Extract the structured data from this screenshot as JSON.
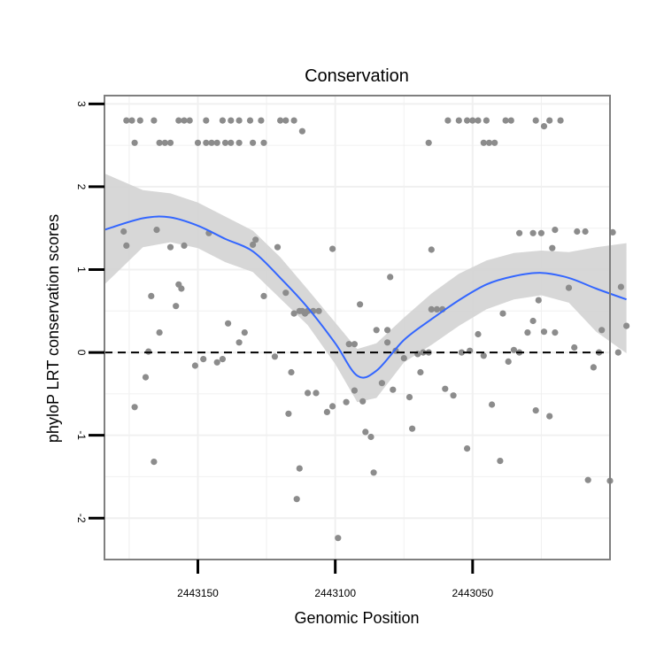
{
  "chart_data": {
    "type": "scatter",
    "title": "Conservation",
    "xlabel": "Genomic Position",
    "ylabel": "phyloP LRT conservation scores",
    "xlim": [
      2443184,
      2443000
    ],
    "ylim": [
      -2.5,
      3.1
    ],
    "x_reversed": true,
    "x_ticks": [
      2443150,
      2443100,
      2443050
    ],
    "x_tick_labels": [
      "2443150",
      "2443100",
      "2443050"
    ],
    "y_ticks": [
      -2,
      -1,
      0,
      1,
      2,
      3
    ],
    "y_tick_labels": [
      "-2",
      "-1",
      "0",
      "1",
      "2",
      "3"
    ],
    "reference_line": {
      "y": 0,
      "style": "dashed"
    },
    "colors": {
      "points": "#8c8c8c",
      "smooth": "#3366ff",
      "ribbon": "#d3d3d3",
      "grid": "#f0f0f0",
      "panel_border": "#7f7f7f"
    },
    "series": [
      {
        "name": "phyloP scores",
        "kind": "points",
        "points": [
          [
            2443176,
            2.8
          ],
          [
            2443174,
            2.8
          ],
          [
            2443171,
            2.8
          ],
          [
            2443166,
            2.8
          ],
          [
            2443157,
            2.8
          ],
          [
            2443155,
            2.8
          ],
          [
            2443153,
            2.8
          ],
          [
            2443147,
            2.8
          ],
          [
            2443141,
            2.8
          ],
          [
            2443138,
            2.8
          ],
          [
            2443135,
            2.8
          ],
          [
            2443131,
            2.8
          ],
          [
            2443127,
            2.8
          ],
          [
            2443120,
            2.8
          ],
          [
            2443118,
            2.8
          ],
          [
            2443115,
            2.8
          ],
          [
            2443059,
            2.8
          ],
          [
            2443055,
            2.8
          ],
          [
            2443052,
            2.8
          ],
          [
            2443050,
            2.8
          ],
          [
            2443048,
            2.8
          ],
          [
            2443045,
            2.8
          ],
          [
            2443038,
            2.8
          ],
          [
            2443036,
            2.8
          ],
          [
            2443027,
            2.8
          ],
          [
            2443022,
            2.8
          ],
          [
            2443018,
            2.8
          ],
          [
            2443173,
            2.53
          ],
          [
            2443164,
            2.53
          ],
          [
            2443162,
            2.53
          ],
          [
            2443160,
            2.53
          ],
          [
            2443150,
            2.53
          ],
          [
            2443147,
            2.53
          ],
          [
            2443145,
            2.53
          ],
          [
            2443143,
            2.53
          ],
          [
            2443140,
            2.53
          ],
          [
            2443138,
            2.53
          ],
          [
            2443135,
            2.53
          ],
          [
            2443130,
            2.53
          ],
          [
            2443126,
            2.53
          ],
          [
            2443066,
            2.53
          ],
          [
            2443046,
            2.53
          ],
          [
            2443044,
            2.53
          ],
          [
            2443042,
            2.53
          ],
          [
            2443112,
            2.67
          ],
          [
            2443024,
            2.73
          ],
          [
            2443177,
            1.46
          ],
          [
            2443176,
            1.29
          ],
          [
            2443165,
            1.48
          ],
          [
            2443160,
            1.27
          ],
          [
            2443155,
            1.29
          ],
          [
            2443146,
            1.44
          ],
          [
            2443130,
            1.3
          ],
          [
            2443129,
            1.36
          ],
          [
            2443121,
            1.27
          ],
          [
            2443101,
            1.25
          ],
          [
            2443065,
            1.24
          ],
          [
            2443033,
            1.44
          ],
          [
            2443028,
            1.44
          ],
          [
            2443025,
            1.44
          ],
          [
            2443021,
            1.26
          ],
          [
            2443020,
            1.48
          ],
          [
            2443012,
            1.46
          ],
          [
            2443009,
            1.46
          ],
          [
            2443157,
            0.82
          ],
          [
            2443156,
            0.77
          ],
          [
            2443158,
            0.56
          ],
          [
            2443167,
            0.68
          ],
          [
            2443164,
            0.24
          ],
          [
            2443168,
            0.01
          ],
          [
            2443169,
            -0.3
          ],
          [
            2443173,
            -0.66
          ],
          [
            2443166,
            -1.32
          ],
          [
            2443151,
            -0.16
          ],
          [
            2443148,
            -0.08
          ],
          [
            2443143,
            -0.12
          ],
          [
            2443141,
            -0.08
          ],
          [
            2443139,
            0.35
          ],
          [
            2443135,
            0.12
          ],
          [
            2443133,
            0.24
          ],
          [
            2443126,
            0.68
          ],
          [
            2443122,
            -0.05
          ],
          [
            2443118,
            0.72
          ],
          [
            2443115,
            0.47
          ],
          [
            2443113,
            0.5
          ],
          [
            2443112,
            0.5
          ],
          [
            2443111,
            0.47
          ],
          [
            2443110,
            0.5
          ],
          [
            2443108,
            0.5
          ],
          [
            2443106,
            0.5
          ],
          [
            2443117,
            -0.74
          ],
          [
            2443116,
            -0.24
          ],
          [
            2443113,
            -1.4
          ],
          [
            2443114,
            -1.77
          ],
          [
            2443110,
            -0.49
          ],
          [
            2443107,
            -0.49
          ],
          [
            2443103,
            -0.72
          ],
          [
            2443101,
            -0.65
          ],
          [
            2443099,
            -2.24
          ],
          [
            2443096,
            -0.6
          ],
          [
            2443095,
            0.1
          ],
          [
            2443093,
            0.1
          ],
          [
            2443093,
            -0.46
          ],
          [
            2443091,
            0.58
          ],
          [
            2443090,
            -0.59
          ],
          [
            2443089,
            -0.96
          ],
          [
            2443087,
            -1.02
          ],
          [
            2443086,
            -1.45
          ],
          [
            2443085,
            0.27
          ],
          [
            2443083,
            -0.37
          ],
          [
            2443081,
            0.12
          ],
          [
            2443081,
            0.27
          ],
          [
            2443080,
            0.91
          ],
          [
            2443079,
            -0.45
          ],
          [
            2443078,
            0.02
          ],
          [
            2443075,
            -0.07
          ],
          [
            2443073,
            -0.54
          ],
          [
            2443072,
            -0.92
          ],
          [
            2443070,
            -0.02
          ],
          [
            2443069,
            -0.24
          ],
          [
            2443068,
            0.0
          ],
          [
            2443066,
            0.0
          ],
          [
            2443065,
            0.52
          ],
          [
            2443063,
            0.52
          ],
          [
            2443061,
            0.52
          ],
          [
            2443060,
            -0.44
          ],
          [
            2443057,
            -0.52
          ],
          [
            2443054,
            0.0
          ],
          [
            2443052,
            -1.16
          ],
          [
            2443051,
            0.02
          ],
          [
            2443048,
            0.22
          ],
          [
            2443046,
            -0.04
          ],
          [
            2443043,
            -0.63
          ],
          [
            2443040,
            -1.31
          ],
          [
            2443039,
            0.47
          ],
          [
            2443037,
            -0.11
          ],
          [
            2443035,
            0.03
          ],
          [
            2443033,
            0.0
          ],
          [
            2443030,
            0.24
          ],
          [
            2443028,
            0.38
          ],
          [
            2443027,
            -0.7
          ],
          [
            2443026,
            0.63
          ],
          [
            2443024,
            0.25
          ],
          [
            2443022,
            -0.77
          ],
          [
            2443020,
            0.24
          ],
          [
            2443015,
            0.78
          ],
          [
            2443013,
            0.06
          ],
          [
            2443008,
            -1.54
          ],
          [
            2443006,
            -0.18
          ],
          [
            2443004,
            0.0
          ],
          [
            2443003,
            0.27
          ],
          [
            2443000,
            -1.55
          ],
          [
            2442999,
            1.45
          ],
          [
            2442997,
            0.0
          ],
          [
            2442996,
            0.79
          ],
          [
            2442994,
            0.32
          ]
        ]
      },
      {
        "name": "smooth fit",
        "kind": "line",
        "points": [
          [
            2443184,
            1.48
          ],
          [
            2443170,
            1.62
          ],
          [
            2443160,
            1.63
          ],
          [
            2443150,
            1.53
          ],
          [
            2443140,
            1.37
          ],
          [
            2443130,
            1.22
          ],
          [
            2443120,
            0.9
          ],
          [
            2443110,
            0.54
          ],
          [
            2443100,
            0.11
          ],
          [
            2443092,
            -0.28
          ],
          [
            2443085,
            -0.22
          ],
          [
            2443075,
            0.15
          ],
          [
            2443065,
            0.4
          ],
          [
            2443055,
            0.63
          ],
          [
            2443045,
            0.82
          ],
          [
            2443035,
            0.92
          ],
          [
            2443025,
            0.96
          ],
          [
            2443015,
            0.9
          ],
          [
            2443005,
            0.77
          ],
          [
            2442994,
            0.64
          ]
        ]
      },
      {
        "name": "confidence band upper",
        "kind": "band-upper",
        "points": [
          [
            2443184,
            2.16
          ],
          [
            2443170,
            1.96
          ],
          [
            2443160,
            1.92
          ],
          [
            2443150,
            1.81
          ],
          [
            2443140,
            1.64
          ],
          [
            2443130,
            1.47
          ],
          [
            2443120,
            1.15
          ],
          [
            2443110,
            0.76
          ],
          [
            2443100,
            0.36
          ],
          [
            2443092,
            0.04
          ],
          [
            2443085,
            0.11
          ],
          [
            2443075,
            0.42
          ],
          [
            2443065,
            0.71
          ],
          [
            2443055,
            0.95
          ],
          [
            2443045,
            1.11
          ],
          [
            2443035,
            1.2
          ],
          [
            2443025,
            1.23
          ],
          [
            2443015,
            1.21
          ],
          [
            2443005,
            1.27
          ],
          [
            2442994,
            1.32
          ]
        ]
      },
      {
        "name": "confidence band lower",
        "kind": "band-lower",
        "points": [
          [
            2443184,
            0.82
          ],
          [
            2443170,
            1.27
          ],
          [
            2443160,
            1.33
          ],
          [
            2443150,
            1.26
          ],
          [
            2443140,
            1.09
          ],
          [
            2443130,
            0.97
          ],
          [
            2443120,
            0.65
          ],
          [
            2443110,
            0.33
          ],
          [
            2443100,
            -0.14
          ],
          [
            2443092,
            -0.6
          ],
          [
            2443085,
            -0.55
          ],
          [
            2443075,
            -0.12
          ],
          [
            2443065,
            0.09
          ],
          [
            2443055,
            0.32
          ],
          [
            2443045,
            0.52
          ],
          [
            2443035,
            0.64
          ],
          [
            2443025,
            0.69
          ],
          [
            2443015,
            0.6
          ],
          [
            2443005,
            0.25
          ],
          [
            2442994,
            -0.01
          ]
        ]
      }
    ]
  }
}
